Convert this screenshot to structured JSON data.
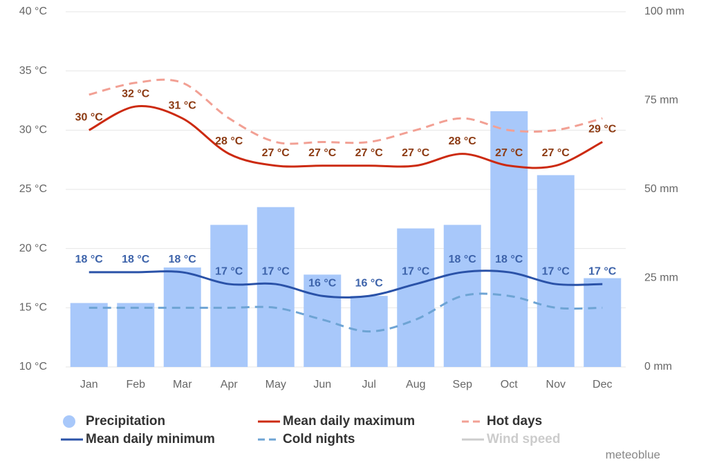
{
  "chart_data": {
    "type": "combo",
    "categories": [
      "Jan",
      "Feb",
      "Mar",
      "Apr",
      "May",
      "Jun",
      "Jul",
      "Aug",
      "Sep",
      "Oct",
      "Nov",
      "Dec"
    ],
    "ylim": [
      10,
      40
    ],
    "yticks": [
      {
        "value": 10,
        "label": "10 °C"
      },
      {
        "value": 15,
        "label": "15 °C"
      },
      {
        "value": 20,
        "label": "20 °C"
      },
      {
        "value": 25,
        "label": "25 °C"
      },
      {
        "value": 30,
        "label": "30 °C"
      },
      {
        "value": 35,
        "label": "35 °C"
      },
      {
        "value": 40,
        "label": "40 °C"
      }
    ],
    "y2lim": [
      0,
      100
    ],
    "y2ticks": [
      {
        "value": 0,
        "label": "0 mm"
      },
      {
        "value": 25,
        "label": "25 mm"
      },
      {
        "value": 50,
        "label": "50 mm"
      },
      {
        "value": 75,
        "label": "75 mm"
      },
      {
        "value": 100,
        "label": "100 mm"
      }
    ],
    "grid": true,
    "series": [
      {
        "name": "Precipitation",
        "type": "bar",
        "axis": "y2",
        "color": "#a8c8fa",
        "values": [
          18,
          18,
          28,
          40,
          45,
          26,
          20,
          39,
          40,
          72,
          54,
          25
        ]
      },
      {
        "name": "Mean daily maximum",
        "type": "line",
        "color": "#cc2a10",
        "label_color": "#8c3a12",
        "values": [
          30,
          32,
          31,
          28,
          27,
          27,
          27,
          27,
          28,
          27,
          27,
          29
        ],
        "value_labels": [
          "30 °C",
          "32 °C",
          "31 °C",
          "28 °C",
          "27 °C",
          "27 °C",
          "27 °C",
          "27 °C",
          "28 °C",
          "27 °C",
          "27 °C",
          "29 °C"
        ]
      },
      {
        "name": "Hot days",
        "type": "line",
        "dashed": true,
        "color": "#f2a094",
        "values": [
          33,
          34,
          34,
          31,
          29,
          29,
          29,
          30,
          31,
          30,
          30,
          31
        ]
      },
      {
        "name": "Mean daily minimum",
        "type": "line",
        "color": "#2a52a8",
        "label_color": "#3d63aa",
        "values": [
          18,
          18,
          18,
          17,
          17,
          16,
          16,
          17,
          18,
          18,
          17,
          17
        ],
        "value_labels": [
          "18 °C",
          "18 °C",
          "18 °C",
          "17 °C",
          "17 °C",
          "16 °C",
          "16 °C",
          "17 °C",
          "18 °C",
          "18 °C",
          "17 °C",
          "17 °C"
        ]
      },
      {
        "name": "Cold nights",
        "type": "line",
        "dashed": true,
        "color": "#6ea4d4",
        "values": [
          15,
          15,
          15,
          15,
          15,
          14,
          13,
          14,
          16,
          16,
          15,
          15
        ]
      },
      {
        "name": "Wind speed",
        "type": "line",
        "visible": false,
        "color": "#cccccc"
      }
    ],
    "credit": "meteoblue"
  }
}
